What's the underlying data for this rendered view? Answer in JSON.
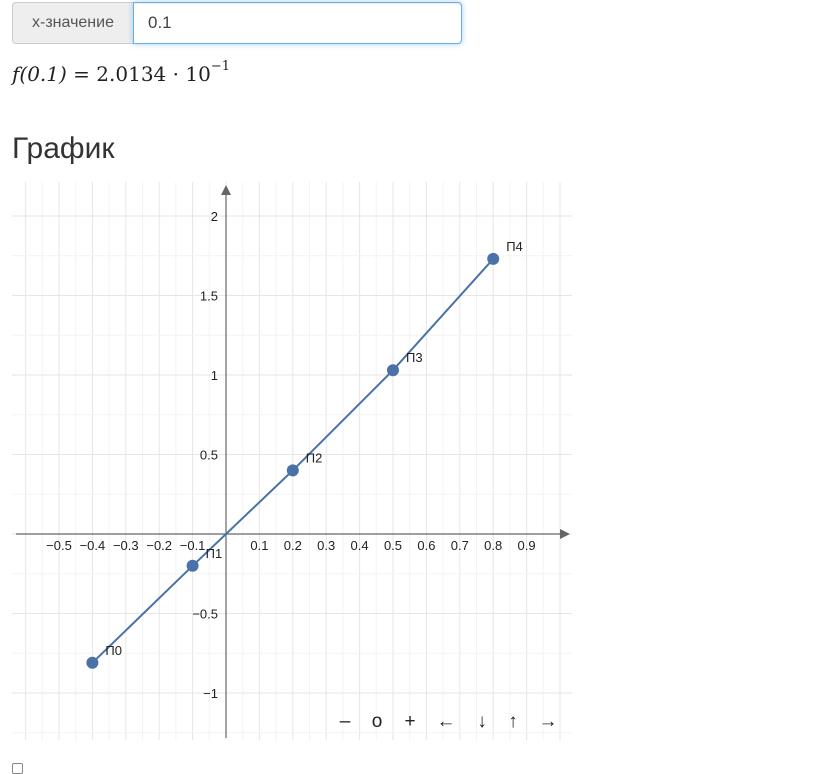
{
  "input": {
    "label": "x-значение",
    "value": "0.1"
  },
  "result": {
    "lhs": "f(0.1) = ",
    "mantissa": "2.0134 · 10",
    "exponent": "−1"
  },
  "heading": "График",
  "nav": {
    "zoom_out": "–",
    "reset": "o",
    "zoom_in": "+",
    "left": "←",
    "down": "↓",
    "up": "↑",
    "right": "→"
  },
  "colors": {
    "series": "#4a72a8",
    "axis": "#666666",
    "grid": "#eeeeee"
  },
  "chart_data": {
    "type": "line",
    "title": "",
    "xlabel": "",
    "ylabel": "",
    "xlim": [
      -0.63,
      1.03
    ],
    "ylim": [
      -1.3,
      2.3
    ],
    "x_ticks": [
      "−0.5",
      "−0.4",
      "−0.3",
      "−0.2",
      "−0.1",
      "0.1",
      "0.2",
      "0.3",
      "0.4",
      "0.5",
      "0.6",
      "0.7",
      "0.8",
      "0.9"
    ],
    "x_tick_values": [
      -0.5,
      -0.4,
      -0.3,
      -0.2,
      -0.1,
      0.1,
      0.2,
      0.3,
      0.4,
      0.5,
      0.6,
      0.7,
      0.8,
      0.9
    ],
    "y_ticks": [
      "−1",
      "−0.5",
      "0.5",
      "1",
      "1.5",
      "2"
    ],
    "y_tick_values": [
      -1,
      -0.5,
      0.5,
      1,
      1.5,
      2
    ],
    "grid": true,
    "series": [
      {
        "x": [
          -0.4,
          -0.1,
          0.2,
          0.5,
          0.8
        ],
        "y": [
          -0.81,
          -0.2,
          0.4,
          1.03,
          1.73
        ],
        "point_labels": [
          "П0",
          "П1",
          "П2",
          "П3",
          "П4"
        ]
      }
    ]
  }
}
